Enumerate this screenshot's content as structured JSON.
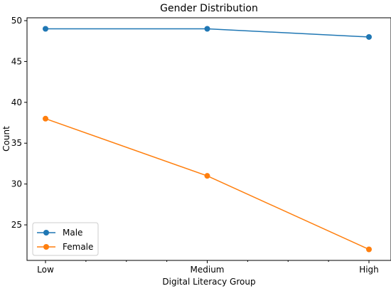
{
  "chart_data": {
    "type": "line",
    "title": "Gender Distribution",
    "xlabel": "Digital Literacy Group",
    "ylabel": "Count",
    "categories": [
      "Low",
      "Medium",
      "High"
    ],
    "series": [
      {
        "name": "Male",
        "values": [
          49,
          49,
          48
        ],
        "color": "#1f77b4"
      },
      {
        "name": "Female",
        "values": [
          38,
          31,
          22
        ],
        "color": "#ff7f0e"
      }
    ],
    "ylim": [
      20.65,
      50.35
    ],
    "yticks": [
      25,
      30,
      35,
      40,
      45,
      50
    ],
    "grid": false,
    "legend_position": "lower-left"
  }
}
